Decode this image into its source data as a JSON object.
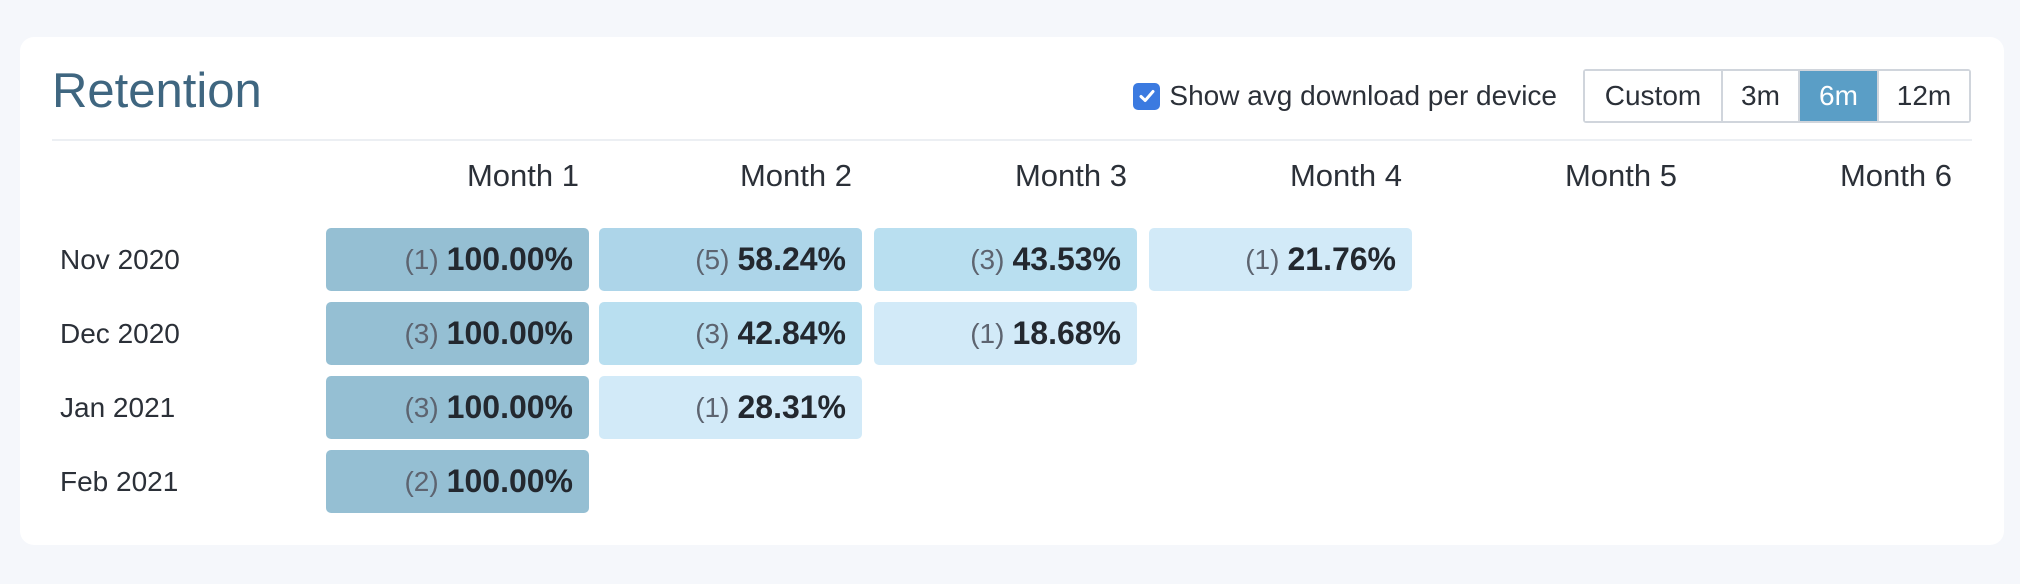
{
  "card": {
    "title": "Retention",
    "show_avg_label": "Show avg download per device",
    "show_avg_checked": true,
    "ranges": [
      {
        "label": "Custom",
        "active": false
      },
      {
        "label": "3m",
        "active": false
      },
      {
        "label": "6m",
        "active": true
      },
      {
        "label": "12m",
        "active": false
      }
    ]
  },
  "table": {
    "columns": [
      "Month 1",
      "Month 2",
      "Month 3",
      "Month 4",
      "Month 5",
      "Month 6"
    ],
    "rows": [
      {
        "label": "Nov 2020",
        "cells": [
          {
            "count": "(1)",
            "pct": "100.00%"
          },
          {
            "count": "(5)",
            "pct": "58.24%"
          },
          {
            "count": "(3)",
            "pct": "43.53%"
          },
          {
            "count": "(1)",
            "pct": "21.76%"
          }
        ]
      },
      {
        "label": "Dec 2020",
        "cells": [
          {
            "count": "(3)",
            "pct": "100.00%"
          },
          {
            "count": "(3)",
            "pct": "42.84%"
          },
          {
            "count": "(1)",
            "pct": "18.68%"
          }
        ]
      },
      {
        "label": "Jan 2021",
        "cells": [
          {
            "count": "(3)",
            "pct": "100.00%"
          },
          {
            "count": "(1)",
            "pct": "28.31%"
          }
        ]
      },
      {
        "label": "Feb 2021",
        "cells": [
          {
            "count": "(2)",
            "pct": "100.00%"
          }
        ]
      }
    ]
  },
  "colors": {
    "cell_100": "#95bfd3",
    "cell_high": "#add5e9",
    "cell_mid": "#b9dff0",
    "cell_low": "#d2eaf8",
    "accent": "#5a9ec6",
    "title": "#3f6680",
    "checkbox": "#3b7ae0"
  }
}
